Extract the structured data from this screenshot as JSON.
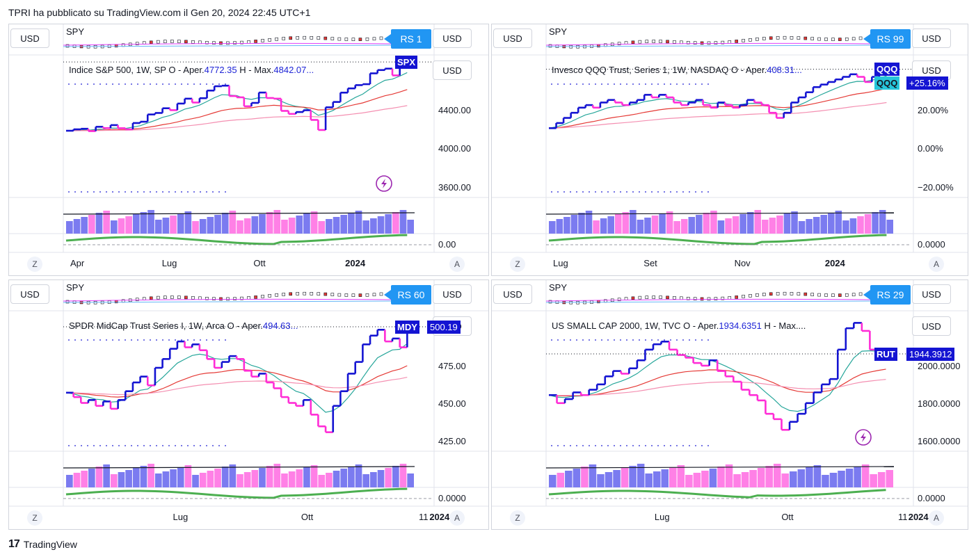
{
  "header": {
    "publish_line": "TPRI ha pubblicato su TradingView.com il Gen 20, 2024 22:45 UTC+1"
  },
  "footer": {
    "logo": "17",
    "brand": "TradingView"
  },
  "colors": {
    "up": "#1414d2",
    "down": "#ff2cd6",
    "ema_fast": "#26a69a",
    "ema_mid": "#e53935",
    "ema_slow": "#f48fb1",
    "rs_line": "#4caf50",
    "rs_neg": "#f44336",
    "badge": "#2196f3"
  },
  "panels": [
    {
      "id": "spx",
      "top_symbol": "SPY",
      "rs_badge": "RS 1",
      "currency": "USD",
      "legend_prefix": "Indice S&P 500, 1W, SP  O - Aper.",
      "legend_open": "4772.35",
      "legend_mid": "  H - Max.",
      "legend_high": "4842.07...",
      "ticker": "SPX",
      "price_tag": "",
      "price_axis": [
        "4400.00",
        "4000.00",
        "3600.00"
      ],
      "osc_axis": "0.00",
      "time_axis": [
        "Apr",
        "Lug",
        "Ott",
        "2024"
      ],
      "extra_time": "",
      "z_btn": "Z",
      "a_btn": "A",
      "has_flash": true,
      "chart_data": {
        "type": "line",
        "title": "Indice S&P 500, 1W",
        "series": [
          {
            "name": "SPX",
            "values": [
              4109,
              4124,
              4130,
              4105,
              4151,
              4137,
              4169,
              4136,
              4124,
              4191,
              4205,
              4282,
              4298,
              4348,
              4328,
              4398,
              4450,
              4409,
              4455,
              4536,
              4582,
              4588,
              4478,
              4464,
              4369,
              4405,
              4515,
              4457,
              4450,
              4320,
              4288,
              4308,
              4327,
              4224,
              4117,
              4358,
              4415,
              4514,
              4559,
              4594,
              4604,
              4719,
              4754,
              4769,
              4697,
              4783,
              4840
            ]
          }
        ],
        "ylim": [
          3400,
          4900
        ]
      }
    },
    {
      "id": "qqq",
      "top_symbol": "SPY",
      "rs_badge": "RS 99",
      "currency": "USD",
      "legend_prefix": "Invesco QQQ Trust, Series 1, 1W, NASDAQ  O - Aper.",
      "legend_open": "408.31...",
      "legend_mid": "",
      "legend_high": "",
      "ticker": "QQQ",
      "ticker2": "QQQ",
      "price_tag": "+25.16%",
      "price_axis": [
        "20.00%",
        "0.00%",
        "−20.00%"
      ],
      "osc_axis": "0.0000",
      "time_axis": [
        "Lug",
        "Set",
        "Nov",
        "2024"
      ],
      "extra_time": "",
      "z_btn": "Z",
      "a_btn": "A",
      "has_flash": false,
      "chart_data": {
        "type": "line",
        "title": "Invesco QQQ Trust, Series 1, 1W",
        "series": [
          {
            "name": "QQQ",
            "values": [
              2,
              4,
              6,
              8,
              10,
              11,
              10,
              12,
              13,
              12,
              11,
              12,
              13,
              15,
              14,
              15,
              14,
              12,
              11,
              12,
              13,
              11,
              10,
              12,
              11,
              10,
              11,
              13,
              12,
              11,
              8,
              6,
              8,
              12,
              14,
              16,
              18,
              19,
              20,
              21,
              22,
              23,
              22,
              20,
              22,
              24,
              25
            ]
          }
        ],
        "ylim": [
          -25,
          30
        ]
      }
    },
    {
      "id": "mdy",
      "top_symbol": "SPY",
      "rs_badge": "RS 60",
      "currency": "USD",
      "legend_prefix": "SPDR MidCap Trust Series I, 1W, Arca  O - Aper.",
      "legend_open": "494.63...",
      "legend_mid": "",
      "legend_high": "",
      "ticker": "MDY",
      "price_tag": "500.19",
      "price_axis": [
        "475.00",
        "450.00",
        "425.00"
      ],
      "osc_axis": "0.0000",
      "time_axis": [
        "Lug",
        "Ott",
        "2024"
      ],
      "extra_time": "11",
      "z_btn": "Z",
      "a_btn": "A",
      "has_flash": false,
      "chart_data": {
        "type": "line",
        "title": "SPDR MidCap Trust Series I, 1W",
        "series": [
          {
            "name": "MDY",
            "values": [
              455,
              452,
              448,
              450,
              446,
              449,
              444,
              450,
              456,
              462,
              466,
              460,
              472,
              478,
              485,
              490,
              486,
              488,
              484,
              478,
              472,
              476,
              480,
              478,
              470,
              466,
              468,
              462,
              458,
              452,
              448,
              446,
              450,
              440,
              432,
              428,
              446,
              456,
              468,
              476,
              488,
              494,
              498,
              490,
              492,
              486,
              500
            ]
          }
        ],
        "ylim": [
          415,
          510
        ]
      }
    },
    {
      "id": "rut",
      "top_symbol": "SPY",
      "rs_badge": "RS 29",
      "currency": "USD",
      "legend_prefix": "US SMALL CAP 2000, 1W, TVC  O - Aper.",
      "legend_open": "1934.6351",
      "legend_mid": "  H - Max....",
      "legend_high": "",
      "ticker": "RUT",
      "price_tag": "1944.3912",
      "price_axis": [
        "2000.0000",
        "1800.0000",
        "1600.0000"
      ],
      "osc_axis": "0.0000",
      "time_axis": [
        "Lug",
        "Ott",
        "2024"
      ],
      "extra_time": "11",
      "z_btn": "Z",
      "a_btn": "A",
      "has_flash": true,
      "chart_data": {
        "type": "line",
        "title": "US SMALL CAP 2000, 1W",
        "series": [
          {
            "name": "RUT",
            "values": [
              1790,
              1760,
              1775,
              1800,
              1790,
              1810,
              1830,
              1860,
              1880,
              1870,
              1890,
              1920,
              1960,
              1980,
              1990,
              1960,
              1940,
              1930,
              1910,
              1900,
              1920,
              1880,
              1860,
              1840,
              1810,
              1790,
              1770,
              1720,
              1700,
              1660,
              1690,
              1720,
              1760,
              1800,
              1830,
              1850,
              1960,
              2040,
              2060,
              2030,
              1960,
              1950,
              1944
            ]
          }
        ],
        "ylim": [
          1580,
          2100
        ]
      }
    }
  ]
}
